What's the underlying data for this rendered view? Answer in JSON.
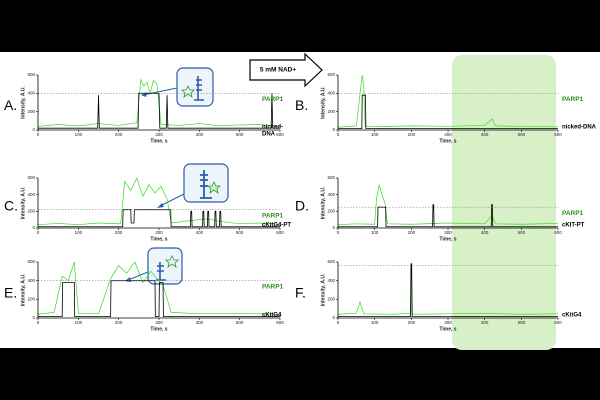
{
  "header": {
    "treatment": "5 mM NAD+"
  },
  "chart_data": [
    {
      "type": "line",
      "panel": "A.",
      "protein_label": "PARP1",
      "substrate_label": [
        "nicked-",
        "DNA"
      ],
      "xlabel": "Time, s",
      "ylabel": "Intensity, A.U.",
      "xlim": [
        0,
        600
      ],
      "xticks": [
        0,
        100,
        200,
        300,
        400,
        500,
        600
      ],
      "ylim": [
        0,
        600
      ],
      "yticks": [
        0,
        200,
        400,
        600
      ],
      "reference_line": 400,
      "series": [
        {
          "color": "#33dd22",
          "x": [
            0,
            50,
            100,
            150,
            200,
            245,
            255,
            262,
            270,
            278,
            286,
            295,
            305,
            350,
            400,
            450,
            500,
            550,
            600
          ],
          "values": [
            40,
            60,
            45,
            70,
            50,
            80,
            550,
            480,
            520,
            400,
            540,
            500,
            60,
            50,
            70,
            45,
            55,
            60,
            40
          ]
        },
        {
          "color": "#000000",
          "x": [
            0,
            148,
            150,
            152,
            248,
            250,
            300,
            302,
            318,
            320,
            322,
            578,
            580,
            582,
            600
          ],
          "values": [
            20,
            20,
            380,
            20,
            20,
            400,
            400,
            20,
            20,
            380,
            20,
            20,
            400,
            20,
            20
          ]
        }
      ]
    },
    {
      "type": "line",
      "panel": "B.",
      "protein_label": "PARP1",
      "substrate_label": [
        "nicked-DNA"
      ],
      "xlabel": "Time, s",
      "ylabel": "Intensity, A.U.",
      "xlim": [
        0,
        600
      ],
      "xticks": [
        0,
        100,
        200,
        300,
        400,
        500,
        600
      ],
      "ylim": [
        0,
        600
      ],
      "yticks": [
        0,
        200,
        400,
        600
      ],
      "reference_line": 400,
      "series": [
        {
          "color": "#33dd22",
          "x": [
            0,
            50,
            66,
            70,
            74,
            100,
            200,
            300,
            400,
            420,
            430,
            500,
            600
          ],
          "values": [
            30,
            45,
            600,
            500,
            40,
            35,
            45,
            40,
            50,
            120,
            45,
            40,
            35
          ]
        },
        {
          "color": "#000000",
          "x": [
            0,
            65,
            66,
            75,
            76,
            600
          ],
          "values": [
            15,
            15,
            380,
            380,
            15,
            15
          ]
        }
      ]
    },
    {
      "type": "line",
      "panel": "C.",
      "protein_label": "PARP1",
      "substrate_label": [
        "cKitG4-PT"
      ],
      "xlabel": "Time, s",
      "ylabel": "Intensity, A.U.",
      "xlim": [
        0,
        600
      ],
      "xticks": [
        0,
        100,
        200,
        300,
        400,
        500,
        600
      ],
      "ylim": [
        0,
        600
      ],
      "yticks": [
        0,
        200,
        400,
        600
      ],
      "reference_line": 220,
      "series": [
        {
          "color": "#33dd22",
          "x": [
            0,
            50,
            100,
            150,
            205,
            215,
            230,
            245,
            260,
            275,
            290,
            305,
            320,
            330,
            380,
            420,
            450,
            500,
            550,
            600
          ],
          "values": [
            40,
            55,
            40,
            60,
            50,
            560,
            450,
            600,
            380,
            520,
            420,
            500,
            350,
            60,
            90,
            110,
            80,
            50,
            60,
            45
          ]
        },
        {
          "color": "#000000",
          "x": [
            0,
            210,
            211,
            230,
            231,
            238,
            239,
            329,
            330,
            378,
            379,
            381,
            382,
            408,
            409,
            411,
            412,
            420,
            421,
            423,
            424,
            438,
            439,
            441,
            442,
            450,
            451,
            453,
            454,
            600
          ],
          "values": [
            15,
            15,
            220,
            220,
            60,
            60,
            220,
            220,
            15,
            15,
            200,
            200,
            15,
            15,
            200,
            200,
            15,
            15,
            200,
            200,
            15,
            15,
            200,
            200,
            15,
            15,
            200,
            200,
            15,
            15
          ]
        }
      ]
    },
    {
      "type": "line",
      "panel": "D.",
      "protein_label": "PARP1",
      "substrate_label": [
        "cKIT-PT"
      ],
      "xlabel": "Time, s",
      "ylabel": "Intensity, A.U.",
      "xlim": [
        0,
        600
      ],
      "xticks": [
        0,
        100,
        200,
        300,
        400,
        500,
        600
      ],
      "ylim": [
        0,
        600
      ],
      "yticks": [
        0,
        200,
        400,
        600
      ],
      "reference_line": 250,
      "series": [
        {
          "color": "#33dd22",
          "x": [
            0,
            50,
            100,
            105,
            112,
            120,
            128,
            135,
            200,
            300,
            400,
            420,
            430,
            500,
            600
          ],
          "values": [
            40,
            50,
            45,
            350,
            520,
            400,
            300,
            50,
            45,
            60,
            50,
            150,
            50,
            45,
            55
          ]
        },
        {
          "color": "#000000",
          "x": [
            0,
            108,
            109,
            130,
            131,
            258,
            259,
            261,
            262,
            418,
            419,
            421,
            422,
            600
          ],
          "values": [
            15,
            15,
            250,
            250,
            15,
            15,
            280,
            280,
            15,
            15,
            280,
            280,
            15,
            15
          ]
        }
      ]
    },
    {
      "type": "line",
      "panel": "E.",
      "protein_label": "PARP1",
      "substrate_label": [
        "cKitG4"
      ],
      "xlabel": "Time, s",
      "ylabel": "Intensity, A.U.",
      "xlim": [
        0,
        600
      ],
      "xticks": [
        0,
        100,
        200,
        300,
        400,
        500,
        600
      ],
      "ylim": [
        0,
        600
      ],
      "yticks": [
        0,
        200,
        400,
        600
      ],
      "reference_line": 400,
      "series": [
        {
          "color": "#33dd22",
          "x": [
            0,
            40,
            60,
            75,
            90,
            100,
            150,
            180,
            200,
            220,
            240,
            260,
            280,
            295,
            310,
            330,
            400,
            500,
            600
          ],
          "values": [
            40,
            60,
            450,
            400,
            600,
            50,
            45,
            420,
            560,
            480,
            600,
            380,
            500,
            420,
            350,
            60,
            45,
            50,
            40
          ]
        },
        {
          "color": "#000000",
          "x": [
            0,
            60,
            61,
            90,
            91,
            180,
            181,
            290,
            291,
            300,
            301,
            310,
            311,
            600
          ],
          "values": [
            15,
            15,
            380,
            380,
            15,
            15,
            400,
            400,
            15,
            15,
            380,
            380,
            15,
            15
          ]
        }
      ]
    },
    {
      "type": "line",
      "panel": "F.",
      "protein_label": "",
      "substrate_label": [
        "cKitG4"
      ],
      "xlabel": "Time, s",
      "ylabel": "Intensity, A.U.",
      "xlim": [
        0,
        600
      ],
      "xticks": [
        0,
        100,
        200,
        300,
        400,
        500,
        600
      ],
      "ylim": [
        0,
        600
      ],
      "yticks": [
        0,
        200,
        400,
        600
      ],
      "reference_line": 560,
      "series": [
        {
          "color": "#33dd22",
          "x": [
            0,
            50,
            60,
            70,
            150,
            197,
            200,
            203,
            300,
            400,
            500,
            600
          ],
          "values": [
            40,
            50,
            170,
            45,
            40,
            50,
            590,
            40,
            45,
            50,
            40,
            45
          ]
        },
        {
          "color": "#000000",
          "x": [
            0,
            198,
            199,
            201,
            202,
            600
          ],
          "values": [
            15,
            15,
            580,
            580,
            15,
            15
          ]
        }
      ]
    }
  ]
}
